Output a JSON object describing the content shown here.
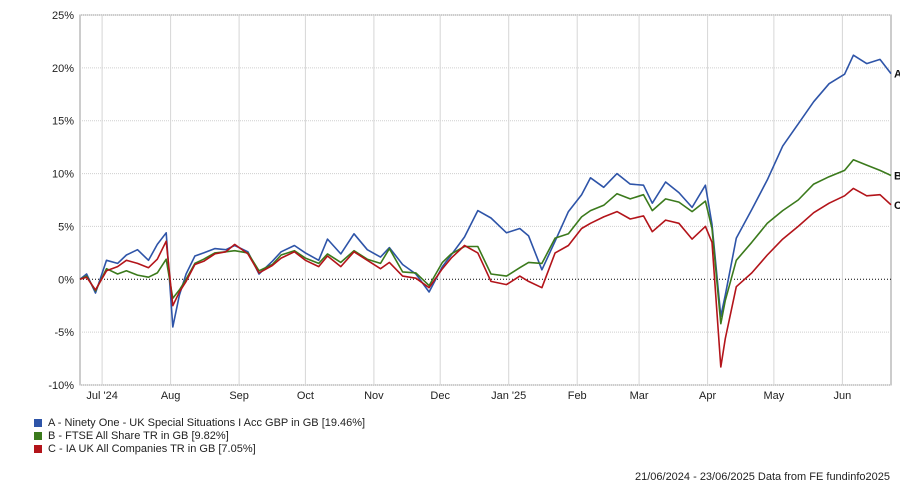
{
  "chart_data": {
    "type": "line",
    "title": "",
    "xlabel": "",
    "ylabel": "",
    "ylim": [
      -10,
      25
    ],
    "yticks": [
      25,
      20,
      15,
      10,
      5,
      0,
      -5,
      -10
    ],
    "ytick_labels": [
      "25%",
      "20%",
      "15%",
      "10%",
      "5%",
      "0%",
      "-5%",
      "-10%"
    ],
    "xlim": [
      "2024-06-21",
      "2025-06-23"
    ],
    "xticks": [
      {
        "label": "Jul '24",
        "date": "2024-07-01"
      },
      {
        "label": "Aug",
        "date": "2024-08-01"
      },
      {
        "label": "Sep",
        "date": "2024-09-01"
      },
      {
        "label": "Oct",
        "date": "2024-10-01"
      },
      {
        "label": "Nov",
        "date": "2024-11-01"
      },
      {
        "label": "Dec",
        "date": "2024-12-01"
      },
      {
        "label": "Jan '25",
        "date": "2025-01-01"
      },
      {
        "label": "Feb",
        "date": "2025-02-01"
      },
      {
        "label": "Mar",
        "date": "2025-03-01"
      },
      {
        "label": "Apr",
        "date": "2025-04-01"
      },
      {
        "label": "May",
        "date": "2025-05-01"
      },
      {
        "label": "Jun",
        "date": "2025-06-01"
      }
    ],
    "grid": true,
    "zero_line": "dotted",
    "legend_position": "bottom-left",
    "x": [
      "2024-06-21",
      "2024-06-24",
      "2024-06-28",
      "2024-07-03",
      "2024-07-08",
      "2024-07-12",
      "2024-07-17",
      "2024-07-22",
      "2024-07-26",
      "2024-07-30",
      "2024-08-02",
      "2024-08-05",
      "2024-08-08",
      "2024-08-12",
      "2024-08-16",
      "2024-08-21",
      "2024-08-26",
      "2024-08-30",
      "2024-09-05",
      "2024-09-10",
      "2024-09-16",
      "2024-09-20",
      "2024-09-26",
      "2024-10-01",
      "2024-10-07",
      "2024-10-11",
      "2024-10-17",
      "2024-10-23",
      "2024-10-29",
      "2024-11-04",
      "2024-11-08",
      "2024-11-14",
      "2024-11-20",
      "2024-11-26",
      "2024-12-02",
      "2024-12-06",
      "2024-12-12",
      "2024-12-18",
      "2024-12-24",
      "2024-12-31",
      "2025-01-06",
      "2025-01-10",
      "2025-01-16",
      "2025-01-22",
      "2025-01-28",
      "2025-02-03",
      "2025-02-07",
      "2025-02-13",
      "2025-02-19",
      "2025-02-25",
      "2025-03-03",
      "2025-03-07",
      "2025-03-13",
      "2025-03-19",
      "2025-03-25",
      "2025-03-31",
      "2025-04-03",
      "2025-04-07",
      "2025-04-09",
      "2025-04-14",
      "2025-04-21",
      "2025-04-28",
      "2025-05-05",
      "2025-05-12",
      "2025-05-19",
      "2025-05-26",
      "2025-06-02",
      "2025-06-06",
      "2025-06-12",
      "2025-06-18",
      "2025-06-23"
    ],
    "series": [
      {
        "name": "A",
        "label": "A - Ninety One - UK Special Situations I Acc GBP in GB [19.46%]",
        "color": "#2e54a8",
        "values": [
          0.0,
          0.5,
          -1.3,
          1.8,
          1.5,
          2.3,
          2.8,
          1.8,
          3.3,
          4.4,
          -4.5,
          -1.5,
          0.5,
          2.2,
          2.5,
          2.9,
          2.8,
          3.2,
          2.6,
          0.5,
          1.7,
          2.6,
          3.2,
          2.5,
          1.8,
          3.8,
          2.4,
          4.3,
          2.8,
          2.1,
          3.0,
          1.4,
          0.5,
          -1.2,
          1.2,
          2.3,
          4.0,
          6.5,
          5.8,
          4.4,
          4.8,
          4.1,
          0.9,
          3.6,
          6.4,
          8.0,
          9.6,
          8.7,
          10.0,
          9.0,
          8.9,
          7.2,
          9.2,
          8.2,
          6.8,
          8.9,
          5.2,
          -3.5,
          -1.5,
          3.9,
          6.6,
          9.4,
          12.6,
          14.7,
          16.8,
          18.5,
          19.4,
          21.2,
          20.4,
          20.8,
          19.46
        ]
      },
      {
        "name": "B",
        "label": "B - FTSE All Share TR in GB [9.82%]",
        "color": "#3b7a1c",
        "values": [
          0.0,
          0.3,
          -1.1,
          1.0,
          0.5,
          0.8,
          0.4,
          0.2,
          0.6,
          1.9,
          -1.8,
          -1.0,
          0.0,
          1.5,
          1.9,
          2.5,
          2.6,
          2.7,
          2.5,
          0.8,
          1.4,
          2.3,
          2.7,
          2.0,
          1.5,
          2.4,
          1.6,
          2.7,
          1.9,
          1.5,
          2.9,
          0.7,
          0.6,
          -0.6,
          1.6,
          2.4,
          3.1,
          3.1,
          0.5,
          0.3,
          1.1,
          1.6,
          1.5,
          3.9,
          4.3,
          5.9,
          6.5,
          7.0,
          8.1,
          7.6,
          8.0,
          6.5,
          7.6,
          7.3,
          6.4,
          7.4,
          4.8,
          -4.2,
          -2.0,
          1.8,
          3.5,
          5.3,
          6.5,
          7.5,
          9.0,
          9.7,
          10.3,
          11.3,
          10.8,
          10.3,
          9.82
        ]
      },
      {
        "name": "C",
        "label": "C - IA UK All Companies TR in GB [7.05%]",
        "color": "#b3141a",
        "values": [
          0.0,
          0.2,
          -1.0,
          0.8,
          1.2,
          1.8,
          1.5,
          1.1,
          1.9,
          3.6,
          -2.5,
          -1.2,
          -0.2,
          1.4,
          1.7,
          2.4,
          2.6,
          3.3,
          2.4,
          0.6,
          1.3,
          2.0,
          2.6,
          1.8,
          1.2,
          2.2,
          1.2,
          2.6,
          1.8,
          1.0,
          1.6,
          0.3,
          0.1,
          -0.8,
          1.0,
          2.0,
          3.2,
          2.5,
          -0.2,
          -0.5,
          0.3,
          -0.2,
          -0.8,
          2.5,
          3.2,
          4.8,
          5.3,
          5.9,
          6.4,
          5.7,
          6.0,
          4.5,
          5.6,
          5.3,
          3.8,
          5.0,
          3.5,
          -8.3,
          -5.6,
          -0.7,
          0.6,
          2.3,
          3.8,
          5.0,
          6.3,
          7.2,
          7.9,
          8.6,
          7.9,
          8.0,
          7.05
        ]
      }
    ],
    "end_labels": [
      "A",
      "B",
      "C"
    ],
    "footer": "21/06/2024 - 23/06/2025 Data from FE fundinfo2025"
  }
}
